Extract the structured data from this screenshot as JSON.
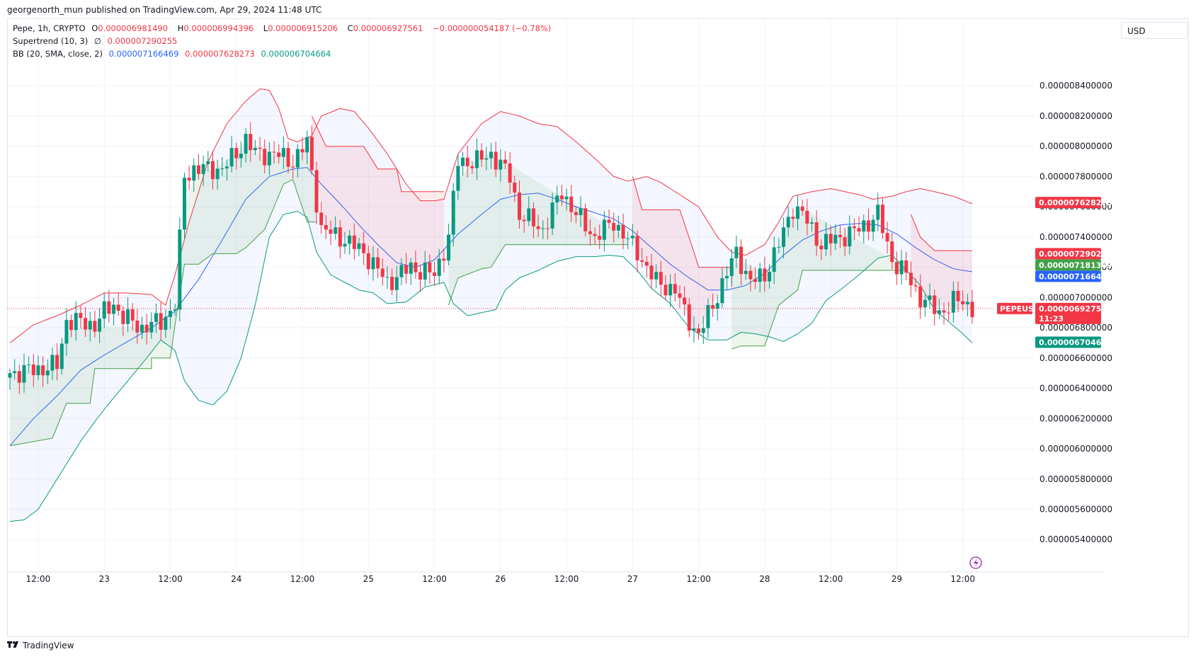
{
  "header": {
    "text": "georgenorth_mun published on TradingView.com, Apr 29, 2024 11:48 UTC"
  },
  "legend": {
    "symbol": "Pepe, 1h, CRYPTO",
    "o_label": "O",
    "o_value": "0.000006981490",
    "h_label": "H",
    "h_value": "0.000006994396",
    "l_label": "L",
    "l_value": "0.000006915206",
    "c_label": "C",
    "c_value": "0.000006927561",
    "change": "−0.000000054187 (−0.78%)",
    "supertrend_label": "Supertrend (10, 3)",
    "supertrend_symbol": "∅",
    "supertrend_value": "0.000007290255",
    "bb_label": "BB (20, SMA, close, 2)",
    "bb_basis": "0.000007166469",
    "bb_upper": "0.000007628273",
    "bb_lower": "0.000006704664"
  },
  "currency": "USD",
  "footer": {
    "brand": "TradingView"
  },
  "colors": {
    "up": "#089981",
    "down": "#f23645",
    "basis": "#2962ff",
    "upper": "#f23645",
    "lower": "#089981",
    "st_up": "#43a047",
    "st_down": "#f23645"
  },
  "chart_data": {
    "type": "candlestick",
    "symbol": "PEPEUSD",
    "interval": "1h",
    "x_ticks": [
      "12:00",
      "23",
      "12:00",
      "24",
      "12:00",
      "25",
      "12:00",
      "26",
      "12:00",
      "27",
      "12:00",
      "28",
      "12:00",
      "29",
      "12:00"
    ],
    "y_ticks": [
      "0.000008400000",
      "0.000008200000",
      "0.000008000000",
      "0.000007800000",
      "0.000007600000",
      "0.000007400000",
      "0.000007200000",
      "0.000007000000",
      "0.000006800000",
      "0.000006600000",
      "0.000006400000",
      "0.000006200000",
      "0.000006000000",
      "0.000005800000",
      "0.000005600000",
      "0.000005400000"
    ],
    "y_tick_values": [
      8.4,
      8.2,
      8.0,
      7.8,
      7.6,
      7.4,
      7.2,
      7.0,
      6.8,
      6.6,
      6.4,
      6.2,
      6.0,
      5.8,
      5.6,
      5.4
    ],
    "y_unit_scale": "1e-6",
    "ylim": [
      5.27,
      8.78
    ],
    "x_tick_bar_index": [
      6,
      20,
      34,
      48,
      62,
      76,
      90,
      104,
      118,
      132,
      146,
      160,
      174,
      188,
      202
    ],
    "num_bars": 205,
    "last_price": "0.000006927561",
    "countdown": "11:23",
    "price_labels": [
      {
        "value": "0.000007628273",
        "color": "#f23645"
      },
      {
        "value": "0.000007290255",
        "color": "#f23645"
      },
      {
        "value": "0.000007181369",
        "color": "#43a047"
      },
      {
        "value": "0.000007166469",
        "color": "#2962ff"
      },
      {
        "value": "0.000006704664",
        "color": "#089981"
      }
    ],
    "price_label_values": [
      7.628273,
      7.290255,
      7.181369,
      7.166469,
      6.704664
    ],
    "last_label_value": 6.927561,
    "close_anchors": [
      [
        0,
        6.5
      ],
      [
        5,
        6.52
      ],
      [
        10,
        6.55
      ],
      [
        12,
        6.85
      ],
      [
        18,
        6.82
      ],
      [
        20,
        6.9
      ],
      [
        22,
        6.96
      ],
      [
        24,
        6.87
      ],
      [
        28,
        6.8
      ],
      [
        32,
        6.84
      ],
      [
        35,
        6.95
      ],
      [
        37,
        7.8
      ],
      [
        39,
        7.85
      ],
      [
        45,
        7.85
      ],
      [
        48,
        7.95
      ],
      [
        50,
        8.05
      ],
      [
        52,
        7.95
      ],
      [
        56,
        7.95
      ],
      [
        60,
        7.9
      ],
      [
        63,
        8.02
      ],
      [
        66,
        7.45
      ],
      [
        70,
        7.4
      ],
      [
        75,
        7.3
      ],
      [
        80,
        7.1
      ],
      [
        85,
        7.2
      ],
      [
        90,
        7.15
      ],
      [
        93,
        7.4
      ],
      [
        95,
        7.9
      ],
      [
        99,
        7.9
      ],
      [
        102,
        7.95
      ],
      [
        106,
        7.8
      ],
      [
        108,
        7.55
      ],
      [
        113,
        7.45
      ],
      [
        117,
        7.7
      ],
      [
        120,
        7.55
      ],
      [
        124,
        7.4
      ],
      [
        128,
        7.5
      ],
      [
        133,
        7.3
      ],
      [
        137,
        7.1
      ],
      [
        141,
        7.05
      ],
      [
        143,
        6.9
      ],
      [
        146,
        6.75
      ],
      [
        149,
        6.95
      ],
      [
        154,
        7.3
      ],
      [
        157,
        7.1
      ],
      [
        160,
        7.15
      ],
      [
        163,
        7.35
      ],
      [
        166,
        7.6
      ],
      [
        168,
        7.55
      ],
      [
        172,
        7.35
      ],
      [
        176,
        7.4
      ],
      [
        180,
        7.45
      ],
      [
        184,
        7.55
      ],
      [
        187,
        7.25
      ],
      [
        190,
        7.15
      ],
      [
        193,
        7.0
      ],
      [
        197,
        6.9
      ],
      [
        200,
        6.97
      ],
      [
        202,
        6.98
      ],
      [
        204,
        6.93
      ]
    ],
    "supertrend_segments": [
      {
        "dir": "up",
        "points": [
          [
            0,
            6.02
          ],
          [
            9,
            6.07
          ],
          [
            12,
            6.3
          ],
          [
            17,
            6.3
          ],
          [
            18,
            6.53
          ],
          [
            30,
            6.53
          ],
          [
            30,
            6.6
          ],
          [
            34,
            6.6
          ],
          [
            35,
            6.82
          ],
          [
            36,
            7.02
          ],
          [
            37,
            7.22
          ],
          [
            40,
            7.22
          ],
          [
            43,
            7.29
          ],
          [
            48,
            7.29
          ],
          [
            50,
            7.33
          ],
          [
            54,
            7.45
          ],
          [
            58,
            7.75
          ],
          [
            60,
            7.78
          ],
          [
            63,
            7.5
          ],
          [
            65,
            7.5
          ]
        ]
      },
      {
        "dir": "down",
        "points": [
          [
            64,
            8.2
          ],
          [
            67,
            8.0
          ],
          [
            75,
            8.0
          ],
          [
            78,
            7.85
          ],
          [
            82,
            7.85
          ],
          [
            83,
            7.7
          ],
          [
            92,
            7.7
          ]
        ]
      },
      {
        "dir": "up",
        "points": [
          [
            93,
            6.95
          ],
          [
            95,
            7.13
          ],
          [
            100,
            7.19
          ],
          [
            102,
            7.2
          ],
          [
            105,
            7.35
          ],
          [
            131,
            7.35
          ]
        ]
      },
      {
        "dir": "down",
        "points": [
          [
            132,
            7.8
          ],
          [
            134,
            7.58
          ],
          [
            142,
            7.58
          ],
          [
            145,
            7.3
          ],
          [
            146,
            7.2
          ],
          [
            153,
            7.2
          ],
          [
            153,
            7.07
          ]
        ]
      },
      {
        "dir": "up",
        "points": [
          [
            153,
            6.66
          ],
          [
            155,
            6.68
          ],
          [
            160,
            6.68
          ],
          [
            163,
            6.95
          ],
          [
            165,
            7.0
          ],
          [
            167,
            7.05
          ],
          [
            168,
            7.18
          ],
          [
            190,
            7.18
          ]
        ]
      },
      {
        "dir": "down",
        "points": [
          [
            191,
            7.55
          ],
          [
            193,
            7.4
          ],
          [
            196,
            7.31
          ],
          [
            204,
            7.31
          ]
        ]
      }
    ],
    "bb_upper_anchors": [
      [
        0,
        6.7
      ],
      [
        5,
        6.82
      ],
      [
        10,
        6.88
      ],
      [
        15,
        6.95
      ],
      [
        20,
        7.03
      ],
      [
        25,
        7.03
      ],
      [
        30,
        7.02
      ],
      [
        33,
        6.95
      ],
      [
        35,
        7.15
      ],
      [
        38,
        7.5
      ],
      [
        42,
        7.9
      ],
      [
        46,
        8.15
      ],
      [
        50,
        8.3
      ],
      [
        53,
        8.38
      ],
      [
        55,
        8.37
      ],
      [
        57,
        8.25
      ],
      [
        59,
        8.05
      ],
      [
        61,
        8.03
      ],
      [
        64,
        8.07
      ],
      [
        66,
        8.2
      ],
      [
        70,
        8.25
      ],
      [
        73,
        8.23
      ],
      [
        76,
        8.12
      ],
      [
        80,
        7.95
      ],
      [
        84,
        7.75
      ],
      [
        87,
        7.64
      ],
      [
        90,
        7.64
      ],
      [
        92,
        7.65
      ],
      [
        95,
        7.95
      ],
      [
        100,
        8.15
      ],
      [
        104,
        8.23
      ],
      [
        108,
        8.2
      ],
      [
        112,
        8.15
      ],
      [
        116,
        8.13
      ],
      [
        120,
        8.03
      ],
      [
        124,
        7.92
      ],
      [
        128,
        7.8
      ],
      [
        131,
        7.77
      ],
      [
        135,
        7.8
      ],
      [
        138,
        7.76
      ],
      [
        142,
        7.68
      ],
      [
        146,
        7.6
      ],
      [
        150,
        7.4
      ],
      [
        153,
        7.3
      ],
      [
        156,
        7.28
      ],
      [
        160,
        7.35
      ],
      [
        163,
        7.5
      ],
      [
        166,
        7.67
      ],
      [
        170,
        7.7
      ],
      [
        174,
        7.72
      ],
      [
        177,
        7.7
      ],
      [
        180,
        7.68
      ],
      [
        183,
        7.65
      ],
      [
        187,
        7.67
      ],
      [
        190,
        7.7
      ],
      [
        193,
        7.72
      ],
      [
        196,
        7.7
      ],
      [
        200,
        7.67
      ],
      [
        204,
        7.62
      ]
    ],
    "bb_lower_anchors": [
      [
        0,
        5.52
      ],
      [
        3,
        5.53
      ],
      [
        6,
        5.6
      ],
      [
        9,
        5.75
      ],
      [
        12,
        5.9
      ],
      [
        15,
        6.05
      ],
      [
        18,
        6.18
      ],
      [
        21,
        6.3
      ],
      [
        25,
        6.45
      ],
      [
        29,
        6.6
      ],
      [
        32,
        6.72
      ],
      [
        35,
        6.65
      ],
      [
        37,
        6.45
      ],
      [
        40,
        6.32
      ],
      [
        43,
        6.29
      ],
      [
        46,
        6.38
      ],
      [
        49,
        6.6
      ],
      [
        52,
        6.95
      ],
      [
        55,
        7.4
      ],
      [
        58,
        7.55
      ],
      [
        61,
        7.57
      ],
      [
        63,
        7.53
      ],
      [
        65,
        7.3
      ],
      [
        68,
        7.15
      ],
      [
        71,
        7.1
      ],
      [
        74,
        7.05
      ],
      [
        77,
        7.03
      ],
      [
        80,
        6.96
      ],
      [
        84,
        6.97
      ],
      [
        88,
        7.07
      ],
      [
        92,
        7.1
      ],
      [
        94,
        6.96
      ],
      [
        97,
        6.88
      ],
      [
        100,
        6.9
      ],
      [
        103,
        6.92
      ],
      [
        105,
        7.05
      ],
      [
        108,
        7.13
      ],
      [
        112,
        7.18
      ],
      [
        116,
        7.24
      ],
      [
        120,
        7.27
      ],
      [
        124,
        7.27
      ],
      [
        127,
        7.28
      ],
      [
        130,
        7.27
      ],
      [
        133,
        7.18
      ],
      [
        136,
        7.06
      ],
      [
        140,
        6.96
      ],
      [
        144,
        6.8
      ],
      [
        148,
        6.72
      ],
      [
        152,
        6.72
      ],
      [
        155,
        6.77
      ],
      [
        158,
        6.76
      ],
      [
        161,
        6.74
      ],
      [
        164,
        6.71
      ],
      [
        167,
        6.76
      ],
      [
        170,
        6.83
      ],
      [
        173,
        6.98
      ],
      [
        176,
        7.05
      ],
      [
        180,
        7.15
      ],
      [
        184,
        7.26
      ],
      [
        187,
        7.28
      ],
      [
        190,
        7.18
      ],
      [
        193,
        7.08
      ],
      [
        196,
        6.92
      ],
      [
        199,
        6.84
      ],
      [
        202,
        6.76
      ],
      [
        204,
        6.7
      ]
    ],
    "bb_basis_anchors": [
      [
        0,
        6.02
      ],
      [
        5,
        6.2
      ],
      [
        10,
        6.35
      ],
      [
        15,
        6.52
      ],
      [
        20,
        6.62
      ],
      [
        25,
        6.71
      ],
      [
        30,
        6.8
      ],
      [
        35,
        6.91
      ],
      [
        40,
        7.12
      ],
      [
        45,
        7.38
      ],
      [
        50,
        7.65
      ],
      [
        55,
        7.8
      ],
      [
        60,
        7.85
      ],
      [
        63,
        7.86
      ],
      [
        66,
        7.75
      ],
      [
        70,
        7.62
      ],
      [
        74,
        7.48
      ],
      [
        78,
        7.35
      ],
      [
        82,
        7.23
      ],
      [
        86,
        7.2
      ],
      [
        90,
        7.25
      ],
      [
        95,
        7.42
      ],
      [
        100,
        7.55
      ],
      [
        104,
        7.65
      ],
      [
        108,
        7.68
      ],
      [
        112,
        7.69
      ],
      [
        116,
        7.65
      ],
      [
        120,
        7.6
      ],
      [
        124,
        7.56
      ],
      [
        128,
        7.52
      ],
      [
        132,
        7.44
      ],
      [
        136,
        7.33
      ],
      [
        140,
        7.22
      ],
      [
        144,
        7.13
      ],
      [
        148,
        7.05
      ],
      [
        152,
        7.05
      ],
      [
        156,
        7.08
      ],
      [
        160,
        7.16
      ],
      [
        164,
        7.28
      ],
      [
        168,
        7.38
      ],
      [
        172,
        7.44
      ],
      [
        176,
        7.48
      ],
      [
        180,
        7.49
      ],
      [
        184,
        7.48
      ],
      [
        188,
        7.42
      ],
      [
        192,
        7.33
      ],
      [
        196,
        7.25
      ],
      [
        200,
        7.19
      ],
      [
        204,
        7.17
      ]
    ]
  }
}
